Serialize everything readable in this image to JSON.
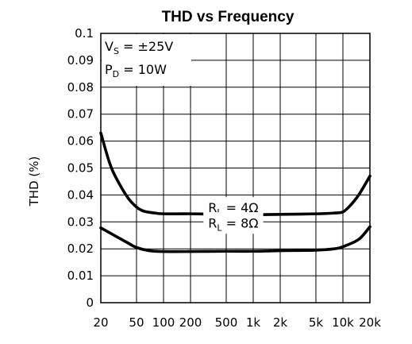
{
  "chart_data": {
    "type": "line",
    "title": "THD vs Frequency",
    "xlabel": "",
    "ylabel": "THD (%)",
    "x_scale": "log",
    "xlim": [
      20,
      20000
    ],
    "ylim": [
      0,
      0.1
    ],
    "grid": true,
    "x_ticks": [
      {
        "value": 20,
        "label": "20"
      },
      {
        "value": 50,
        "label": "50"
      },
      {
        "value": 100,
        "label": "100"
      },
      {
        "value": 200,
        "label": "200"
      },
      {
        "value": 500,
        "label": "500"
      },
      {
        "value": 1000,
        "label": "1k"
      },
      {
        "value": 2000,
        "label": "2k"
      },
      {
        "value": 5000,
        "label": "5k"
      },
      {
        "value": 10000,
        "label": "10k"
      },
      {
        "value": 20000,
        "label": "20k"
      }
    ],
    "y_ticks": [
      {
        "value": 0,
        "label": "0"
      },
      {
        "value": 0.01,
        "label": "0.01"
      },
      {
        "value": 0.02,
        "label": "0.02"
      },
      {
        "value": 0.03,
        "label": "0.03"
      },
      {
        "value": 0.04,
        "label": "0.04"
      },
      {
        "value": 0.05,
        "label": "0.05"
      },
      {
        "value": 0.06,
        "label": "0.06"
      },
      {
        "value": 0.07,
        "label": "0.07"
      },
      {
        "value": 0.08,
        "label": "0.08"
      },
      {
        "value": 0.09,
        "label": "0.09"
      },
      {
        "value": 0.1,
        "label": "0.1"
      }
    ],
    "conditions": {
      "vs": {
        "symbol": "V",
        "sub": "S",
        "text": " = ±25V"
      },
      "pd": {
        "symbol": "P",
        "sub": "D",
        "text": " = 10W"
      }
    },
    "series": [
      {
        "label": {
          "symbol": "R",
          "sub": "L",
          "text": " = 4Ω"
        },
        "x": [
          20,
          25,
          30,
          40,
          50,
          60,
          80,
          100,
          200,
          500,
          1000,
          2000,
          5000,
          8000,
          10000,
          12000,
          15000,
          20000
        ],
        "y": [
          0.063,
          0.052,
          0.046,
          0.039,
          0.0355,
          0.034,
          0.0333,
          0.033,
          0.033,
          0.0328,
          0.0327,
          0.0328,
          0.033,
          0.0333,
          0.0337,
          0.036,
          0.04,
          0.047
        ]
      },
      {
        "label": {
          "symbol": "R",
          "sub": "L",
          "text": " = 8Ω"
        },
        "x": [
          20,
          30,
          40,
          50,
          70,
          100,
          200,
          500,
          1000,
          2000,
          5000,
          8000,
          10000,
          15000,
          20000
        ],
        "y": [
          0.0278,
          0.0245,
          0.0222,
          0.0205,
          0.0193,
          0.019,
          0.019,
          0.0191,
          0.0191,
          0.0193,
          0.0195,
          0.02,
          0.0208,
          0.0235,
          0.0282
        ]
      }
    ]
  }
}
